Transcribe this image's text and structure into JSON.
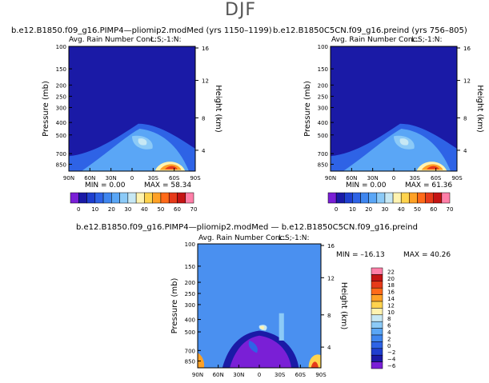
{
  "figure": {
    "title": "DJF",
    "colors": {
      "colorbar_top": [
        "#7a1fd6",
        "#1a1aa6",
        "#1f3fcf",
        "#2e63e6",
        "#3f86ef",
        "#5aa6f6",
        "#8ccaf7",
        "#c7e8f4",
        "#fff3b0",
        "#ffd34d",
        "#ffa126",
        "#ff6a19",
        "#e63a1a",
        "#c41414",
        "#ff7fa8"
      ],
      "colorbar_diff": [
        "#7a1fd6",
        "#1a1aa6",
        "#1f3fcf",
        "#2e63e6",
        "#3f86ef",
        "#5aa6f6",
        "#8ccaf7",
        "#c7e8f4",
        "#fff3b0",
        "#ffd34d",
        "#ffa126",
        "#ff6a19",
        "#e63a1a",
        "#c41414",
        "#ff7fa8"
      ]
    }
  },
  "chart_data": [
    {
      "type": "heatmap",
      "title": "b.e12.B1850.f09_g16.PIMP4—pliomip2.modMed (yrs 1150–1199)",
      "subtitle": "Avg. Rain Number Conc.",
      "corner_label": "L:S;-1:N:",
      "xlabel": "",
      "ylabel": "Pressure (mb)",
      "y2label": "Height (km)",
      "x_ticks": [
        "90N",
        "60N",
        "30N",
        "0",
        "30S",
        "60S",
        "90S"
      ],
      "y_ticks": [
        "100",
        "150",
        "200",
        "250",
        "300",
        "400",
        "500",
        "700",
        "850"
      ],
      "y2_ticks": [
        "16",
        "12",
        "8",
        "4"
      ],
      "stats": {
        "min": "MIN =    0.00",
        "max": "MAX =   58.34"
      },
      "colorbar_labels": [
        "0",
        "10",
        "20",
        "30",
        "40",
        "50",
        "60",
        "70"
      ]
    },
    {
      "type": "heatmap",
      "title": "b.e12.B1850C5CN.f09_g16.preind (yrs 756–805)",
      "subtitle": "Avg. Rain Number Conc.",
      "corner_label": "L:S;-1:N:",
      "xlabel": "",
      "ylabel": "Pressure (mb)",
      "y2label": "Height (km)",
      "x_ticks": [
        "90N",
        "60N",
        "30N",
        "0",
        "30S",
        "60S",
        "90S"
      ],
      "y_ticks": [
        "100",
        "150",
        "200",
        "250",
        "300",
        "400",
        "500",
        "700",
        "850"
      ],
      "y2_ticks": [
        "16",
        "12",
        "8",
        "4"
      ],
      "stats": {
        "min": "MIN =    0.00",
        "max": "MAX =   61.36"
      },
      "colorbar_labels": [
        "0",
        "10",
        "20",
        "30",
        "40",
        "50",
        "60",
        "70"
      ]
    },
    {
      "type": "heatmap",
      "title": "b.e12.B1850.f09_g16.PIMP4—pliomip2.modMed — b.e12.B1850C5CN.f09_g16.preind",
      "subtitle": "Avg. Rain Number Conc.",
      "corner_label": "L:S;-1:N:",
      "xlabel": "",
      "ylabel": "Pressure (mb)",
      "y2label": "Height (km)",
      "x_ticks": [
        "90N",
        "60N",
        "30N",
        "0",
        "30S",
        "60S",
        "90S"
      ],
      "y_ticks": [
        "100",
        "150",
        "200",
        "250",
        "300",
        "400",
        "500",
        "700",
        "850"
      ],
      "y2_ticks": [
        "16",
        "12",
        "8",
        "4"
      ],
      "stats": {
        "min": "MIN =  –16.13",
        "max": "MAX =   40.26"
      },
      "colorbar_labels": [
        "22",
        "20",
        "18",
        "16",
        "14",
        "12",
        "10",
        "8",
        "6",
        "4",
        "2",
        "0",
        "−2",
        "−4",
        "−6"
      ]
    }
  ]
}
